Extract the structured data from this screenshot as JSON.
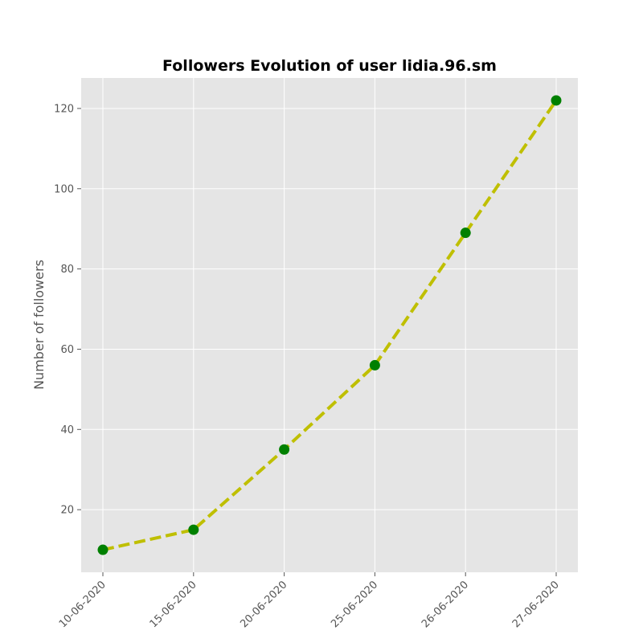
{
  "chart_data": {
    "type": "line",
    "title": "Followers Evolution of user lidia.96.sm",
    "xlabel": "",
    "ylabel": "Number of followers",
    "categories": [
      "10-06-2020",
      "15-06-2020",
      "20-06-2020",
      "25-06-2020",
      "26-06-2020",
      "27-06-2020"
    ],
    "series": [
      {
        "values": [
          10,
          15,
          35,
          56,
          89,
          122
        ]
      }
    ],
    "ylim": [
      4.4,
      127.6
    ],
    "yticks": [
      20,
      40,
      60,
      80,
      100,
      120
    ],
    "grid": true,
    "line_style": "dashed",
    "line_color": "#bfbf00",
    "marker_color": "#008000",
    "plot_background": "#e5e5e5",
    "grid_color": "#ffffff"
  }
}
